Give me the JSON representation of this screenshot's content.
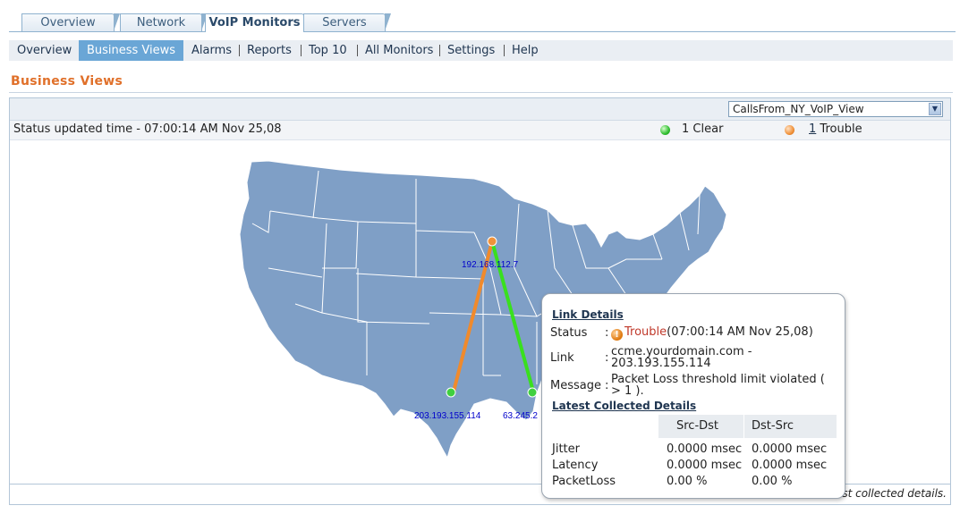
{
  "tabs": [
    {
      "label": "Overview",
      "active": false
    },
    {
      "label": "Network",
      "active": false
    },
    {
      "label": "VoIP Monitors",
      "active": true
    },
    {
      "label": "Servers",
      "active": false
    }
  ],
  "subnav": [
    {
      "label": "Overview",
      "active": false
    },
    {
      "label": "Business Views",
      "active": true
    },
    {
      "label": "Alarms",
      "active": false
    },
    {
      "label": "Reports",
      "active": false
    },
    {
      "label": "Top 10",
      "active": false
    },
    {
      "label": "All Monitors",
      "active": false
    },
    {
      "label": "Settings",
      "active": false
    },
    {
      "label": "Help",
      "active": false
    }
  ],
  "page_title": "Business Views",
  "view_selector": {
    "selected": "CallsFrom_NY_VoIP_View"
  },
  "status": {
    "updated_text": "Status updated time - 07:00:14 AM Nov 25,08",
    "clear_count": "1",
    "clear_label": "Clear",
    "trouble_count": "1",
    "trouble_label": "Trouble"
  },
  "map": {
    "nodes": [
      {
        "ip": "192.168.112.7",
        "status": "trouble"
      },
      {
        "ip": "203.193.155.114",
        "status": "clear"
      },
      {
        "ip": "63.245.2",
        "status": "clear"
      }
    ],
    "links": [
      {
        "from": "192.168.112.7",
        "to": "203.193.155.114",
        "status": "trouble",
        "color": "#f08a2c"
      },
      {
        "from": "192.168.112.7",
        "to": "63.245.2",
        "status": "clear",
        "color": "#39e01e"
      }
    ]
  },
  "link_details": {
    "header": "Link Details",
    "status_label": "Status",
    "status_word": "Trouble",
    "status_time": "(07:00:14 AM Nov 25,08)",
    "link_label": "Link",
    "link_value": "ccme.yourdomain.com - 203.193.155.114",
    "message_label": "Message",
    "message_value": "Packet Loss threshold limit violated ( > 1 ).",
    "collected_header": "Latest Collected Details",
    "columns": [
      "Src-Dst",
      "Dst-Src"
    ],
    "rows": [
      {
        "metric": "Jitter",
        "src_dst": "0.0000 msec",
        "dst_src": "0.0000 msec"
      },
      {
        "metric": "Latency",
        "src_dst": "0.0000 msec",
        "dst_src": "0.0000 msec"
      },
      {
        "metric": "PacketLoss",
        "src_dst": "0.00 %",
        "dst_src": "0.00 %"
      }
    ]
  },
  "bottom_note": "est collected details.",
  "colors": {
    "accent": "#e0702a",
    "map_fill": "#7f9fc6",
    "nav_active": "#6aa6d6"
  }
}
